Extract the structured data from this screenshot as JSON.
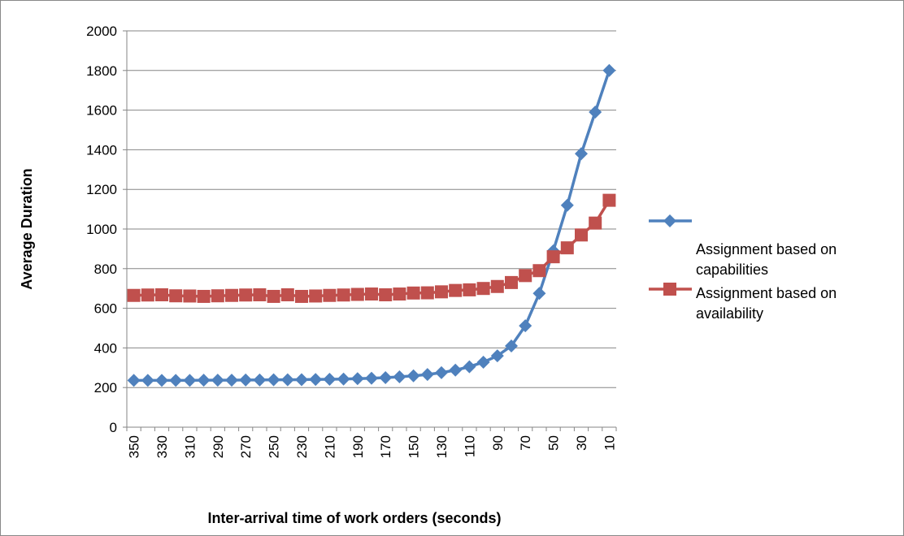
{
  "chart_data": {
    "type": "line",
    "x_label": "Inter-arrival time of work orders (seconds)",
    "y_label": "Average Duration",
    "categories": [
      "350",
      null,
      "330",
      null,
      "310",
      null,
      "290",
      null,
      "270",
      null,
      "250",
      null,
      "230",
      null,
      "210",
      null,
      "190",
      null,
      "170",
      null,
      "150",
      null,
      "130",
      null,
      "110",
      null,
      "90",
      null,
      "70",
      null,
      "50",
      null,
      "30",
      null,
      "10"
    ],
    "series": [
      {
        "name": "Assignment based on capabilities",
        "color": "#4f81bd",
        "marker": "diamond",
        "values": [
          236,
          236,
          236,
          236,
          236,
          237,
          237,
          237,
          238,
          238,
          239,
          239,
          240,
          241,
          242,
          243,
          245,
          247,
          250,
          254,
          259,
          266,
          275,
          288,
          305,
          328,
          360,
          410,
          512,
          675,
          890,
          1120,
          1380,
          1590,
          1800
        ]
      },
      {
        "name": "Assignment based on availability",
        "color": "#c0504d",
        "marker": "square",
        "values": [
          665,
          667,
          668,
          663,
          662,
          660,
          663,
          665,
          667,
          668,
          660,
          668,
          660,
          662,
          665,
          667,
          670,
          672,
          668,
          672,
          677,
          678,
          683,
          690,
          693,
          700,
          710,
          730,
          765,
          790,
          860,
          905,
          970,
          1030,
          1145
        ]
      }
    ],
    "ylim": [
      0,
      2000
    ],
    "yticks": [
      0,
      200,
      400,
      600,
      800,
      1000,
      1200,
      1400,
      1600,
      1800,
      2000
    ],
    "grid": true,
    "legend": "right"
  }
}
